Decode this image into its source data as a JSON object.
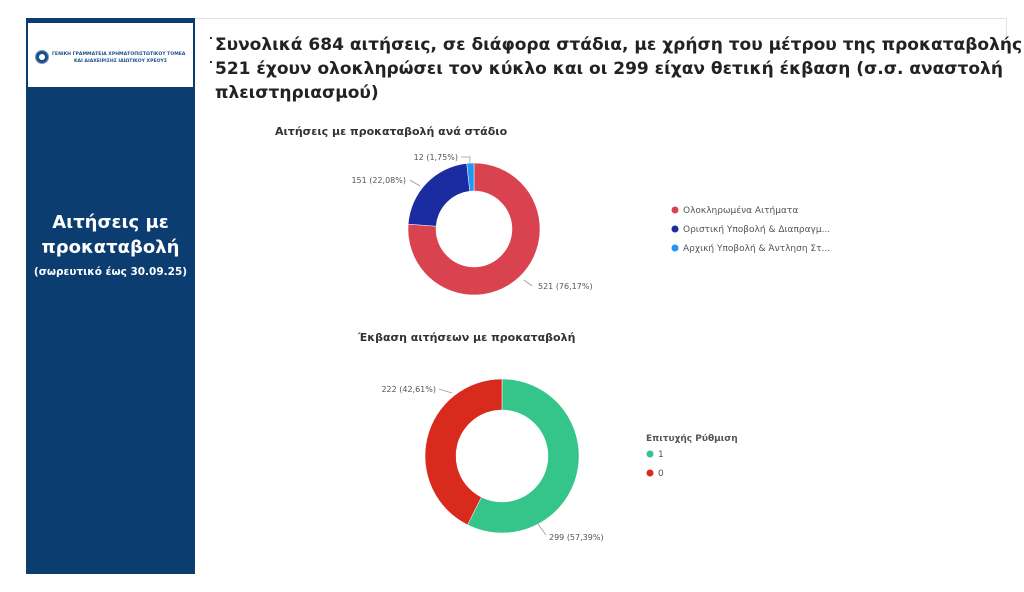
{
  "sidebar": {
    "logo_line1": "ΓΕΝΙΚΗ ΓΡΑΜΜΑΤΕΙΑ ΧΡΗΜΑΤΟΠΙΣΤΩΤΙΚΟΥ ΤΟΜΕΑ",
    "logo_line2": "ΚΑΙ ΔΙΑΧΕΙΡΙΣΗΣ ΙΔΙΩΤΙΚΟΥ ΧΡΕΟΥΣ",
    "title_line1": "Αιτήσεις με",
    "title_line2": "προκαταβολή",
    "subtitle": "(σωρευτικό έως 30.09.25)"
  },
  "headline": {
    "line1": "Συνολικά 684 αιτήσεις, σε διάφορα στάδια, με χρήση του μέτρου της προκαταβολής",
    "line2": "521 έχουν ολοκληρώσει τον κύκλο και οι 299 είχαν θετική έκβαση (σ.σ. αναστολή",
    "line3": "πλειστηριασμού)"
  },
  "colors": {
    "sidebar_bg": "#0b3d70",
    "completed": "#d9434f",
    "final_submission": "#1a2ca0",
    "initial_submission": "#2196f3",
    "success_1": "#35c48a",
    "success_0": "#d92b1d"
  },
  "chart_data": [
    {
      "type": "pie",
      "title": "Αιτήσεις με προκαταβολή ανά στάδιο",
      "legend_placement": "right",
      "slices": [
        {
          "name": "Ολοκληρωμένα Αιτήματα",
          "value": 521,
          "label": "521 (76,17%)",
          "color": "#d9434f"
        },
        {
          "name": "Οριστική Υποβολή & Διαπραγμ...",
          "value": 151,
          "label": "151 (22,08%)",
          "color": "#1a2ca0"
        },
        {
          "name": "Αρχική Υποβολή & Άντληση Στ...",
          "value": 12,
          "label": "12 (1,75%)",
          "color": "#2196f3"
        }
      ]
    },
    {
      "type": "pie",
      "title": "Έκβαση αιτήσεων με προκαταβολή",
      "legend_title": "Επιτυχής Ρύθμιση",
      "legend_placement": "right",
      "slices": [
        {
          "name": "1",
          "value": 299,
          "label": "299 (57,39%)",
          "color": "#35c48a"
        },
        {
          "name": "0",
          "value": 222,
          "label": "222 (42,61%)",
          "color": "#d92b1d"
        }
      ]
    }
  ]
}
